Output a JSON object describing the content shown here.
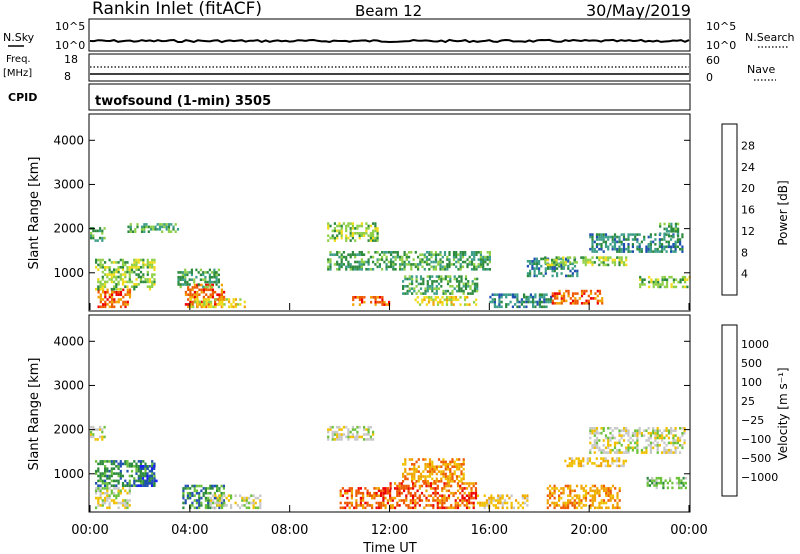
{
  "header": {
    "station": "Rankin Inlet (fitACF)",
    "beam": "Beam 12",
    "date": "30/May/2019"
  },
  "noise_panel": {
    "left_label": "N.Sky",
    "left_ticks": [
      "10^5",
      "10^0"
    ],
    "right_ticks": [
      "10^5",
      "10^0"
    ],
    "right_label": "N.Search"
  },
  "freq_panel": {
    "left_label": "Freq.",
    "left_unit": "[MHz]",
    "left_ticks": [
      "18",
      "8"
    ],
    "right_ticks": [
      "60",
      "0"
    ],
    "right_label": "Nave"
  },
  "cpid_panel": {
    "label": "CPID",
    "text": "twofsound (1-min) 3505"
  },
  "colors": {
    "power_scale": [
      "#1a1aff",
      "#1f4fb0",
      "#3d9e8a",
      "#2c8a3d",
      "#8fd048",
      "#f1dc1b",
      "#f0a400",
      "#ee5a00",
      "#ee0000"
    ],
    "velocity_scale": [
      "#ee0000",
      "#ee5a00",
      "#f0a400",
      "#f1c100",
      "#c8c8c8",
      "#6cc23a",
      "#2c8a3d",
      "#1f4fb0",
      "#1a1aff"
    ]
  },
  "chart_data": [
    {
      "type": "heatmap",
      "title": "Power",
      "xlabel": "",
      "ylabel": "Slant Range [km]",
      "xlim": [
        "00:00",
        "24:00"
      ],
      "ylim": [
        180,
        4550
      ],
      "yticks": [
        "1000",
        "2000",
        "3000",
        "4000"
      ],
      "colorbar": {
        "label": "Power [dB]",
        "ticks": [
          "28",
          "24",
          "20",
          "16",
          "12",
          "8",
          "4"
        ],
        "range": [
          0,
          32
        ]
      },
      "features": [
        {
          "t0": 0.3,
          "t1": 1.6,
          "r0": 200,
          "r1": 600,
          "level": 28
        },
        {
          "t0": 3.8,
          "t1": 5.4,
          "r0": 200,
          "r1": 700,
          "level": 28
        },
        {
          "t0": 0.2,
          "t1": 2.6,
          "r0": 600,
          "r1": 1300,
          "level": 14
        },
        {
          "t0": 0.0,
          "t1": 0.6,
          "r0": 1700,
          "r1": 2000,
          "level": 10
        },
        {
          "t0": 1.5,
          "t1": 3.5,
          "r0": 1900,
          "r1": 2100,
          "level": 12
        },
        {
          "t0": 3.5,
          "t1": 5.2,
          "r0": 650,
          "r1": 1050,
          "level": 12
        },
        {
          "t0": 4.0,
          "t1": 6.2,
          "r0": 200,
          "r1": 400,
          "level": 20
        },
        {
          "t0": 9.5,
          "t1": 11.5,
          "r0": 1700,
          "r1": 2100,
          "level": 14
        },
        {
          "t0": 9.5,
          "t1": 16.0,
          "r0": 1050,
          "r1": 1450,
          "level": 10
        },
        {
          "t0": 10.5,
          "t1": 12.0,
          "r0": 250,
          "r1": 450,
          "level": 26
        },
        {
          "t0": 13.0,
          "t1": 15.5,
          "r0": 250,
          "r1": 450,
          "level": 20
        },
        {
          "t0": 12.5,
          "t1": 15.5,
          "r0": 500,
          "r1": 900,
          "level": 12
        },
        {
          "t0": 16.0,
          "t1": 18.5,
          "r0": 200,
          "r1": 500,
          "level": 8
        },
        {
          "t0": 17.5,
          "t1": 19.5,
          "r0": 900,
          "r1": 1300,
          "level": 8
        },
        {
          "t0": 18.2,
          "t1": 21.5,
          "r0": 1150,
          "r1": 1350,
          "level": 16
        },
        {
          "t0": 18.5,
          "t1": 20.5,
          "r0": 280,
          "r1": 600,
          "level": 26
        },
        {
          "t0": 20.0,
          "t1": 23.7,
          "r0": 1450,
          "r1": 1850,
          "level": 6
        },
        {
          "t0": 22.0,
          "t1": 24.0,
          "r0": 650,
          "r1": 900,
          "level": 14
        },
        {
          "t0": 22.8,
          "t1": 23.6,
          "r0": 1800,
          "r1": 2100,
          "level": 10
        }
      ]
    },
    {
      "type": "heatmap",
      "title": "Velocity",
      "xlabel": "Time UT",
      "ylabel": "Slant Range [km]",
      "xlim": [
        "00:00",
        "24:00"
      ],
      "xticks": [
        "00:00",
        "04:00",
        "08:00",
        "12:00",
        "16:00",
        "20:00",
        "00:00"
      ],
      "ylim": [
        180,
        4550
      ],
      "yticks": [
        "1000",
        "2000",
        "3000",
        "4000"
      ],
      "colorbar": {
        "label": "Velocity [m s⁻¹]",
        "ticks": [
          "1000",
          "500",
          "100",
          "25",
          "−25",
          "−100",
          "−500",
          "−1000"
        ]
      },
      "features": [
        {
          "t0": 0.2,
          "t1": 1.6,
          "r0": 200,
          "r1": 650,
          "level": 4
        },
        {
          "t0": 0.2,
          "t1": 2.6,
          "r0": 700,
          "r1": 1300,
          "level": 6
        },
        {
          "t0": 1.9,
          "t1": 2.7,
          "r0": 700,
          "r1": 1150,
          "level": 7
        },
        {
          "t0": 0.0,
          "t1": 0.6,
          "r0": 1750,
          "r1": 2050,
          "level": 4
        },
        {
          "t0": 3.7,
          "t1": 5.4,
          "r0": 200,
          "r1": 750,
          "level": 6
        },
        {
          "t0": 4.8,
          "t1": 6.8,
          "r0": 200,
          "r1": 500,
          "level": 4
        },
        {
          "t0": 9.5,
          "t1": 11.3,
          "r0": 1750,
          "r1": 2050,
          "level": 4
        },
        {
          "t0": 10.0,
          "t1": 12.0,
          "r0": 200,
          "r1": 650,
          "level": 1
        },
        {
          "t0": 12.0,
          "t1": 15.5,
          "r0": 200,
          "r1": 800,
          "level": 1
        },
        {
          "t0": 12.5,
          "t1": 15.0,
          "r0": 800,
          "r1": 1300,
          "level": 2
        },
        {
          "t0": 15.5,
          "t1": 17.5,
          "r0": 200,
          "r1": 500,
          "level": 3
        },
        {
          "t0": 18.3,
          "t1": 21.2,
          "r0": 200,
          "r1": 700,
          "level": 2
        },
        {
          "t0": 19.0,
          "t1": 21.5,
          "r0": 1150,
          "r1": 1350,
          "level": 3
        },
        {
          "t0": 20.0,
          "t1": 23.8,
          "r0": 1450,
          "r1": 2050,
          "level": 4
        },
        {
          "t0": 22.3,
          "t1": 24.0,
          "r0": 650,
          "r1": 900,
          "level": 5
        }
      ]
    }
  ]
}
